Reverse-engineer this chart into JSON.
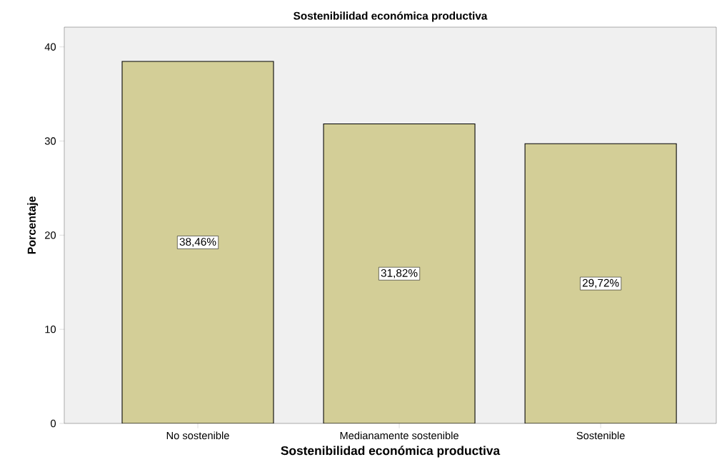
{
  "chart_data": {
    "type": "bar",
    "title": "Sostenibilidad económica productiva",
    "xlabel": "Sostenibilidad económica productiva",
    "ylabel": "Porcentaje",
    "categories": [
      "No sostenible",
      "Medianamente sostenible",
      "Sostenible"
    ],
    "values": [
      38.46,
      31.82,
      29.72
    ],
    "value_labels": [
      "38,46%",
      "31,82%",
      "29,72%"
    ],
    "color": "#d3ce97",
    "ylim": [
      0,
      42.1
    ],
    "yticks": [
      0,
      10,
      20,
      30,
      40
    ]
  }
}
